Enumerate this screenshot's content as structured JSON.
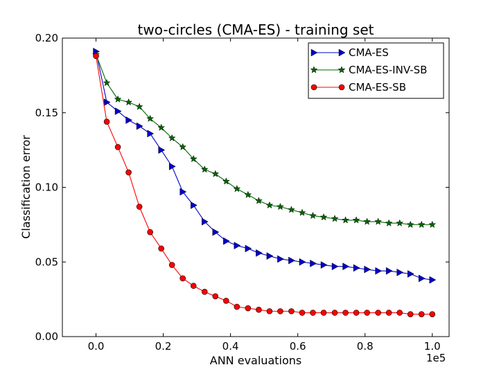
{
  "chart_data": {
    "type": "line",
    "title": "two-circles (CMA-ES) - training set",
    "xlabel": "ANN evaluations",
    "ylabel": "Classification error",
    "x_offset_label": "1e5",
    "xlim": [
      -0.1,
      1.05
    ],
    "ylim": [
      0.0,
      0.2
    ],
    "xticks": [
      0.0,
      0.2,
      0.4,
      0.6,
      0.8,
      1.0
    ],
    "xtick_labels": [
      "0.0",
      "0.2",
      "0.4",
      "0.6",
      "0.8",
      "1.0"
    ],
    "yticks": [
      0.0,
      0.05,
      0.1,
      0.15,
      0.2
    ],
    "ytick_labels": [
      "0.00",
      "0.05",
      "0.10",
      "0.15",
      "0.20"
    ],
    "legend_position": "top-right",
    "grid": false,
    "x": [
      0.0,
      0.032,
      0.065,
      0.097,
      0.129,
      0.161,
      0.194,
      0.226,
      0.258,
      0.29,
      0.323,
      0.355,
      0.387,
      0.419,
      0.452,
      0.484,
      0.516,
      0.548,
      0.581,
      0.613,
      0.645,
      0.677,
      0.71,
      0.742,
      0.774,
      0.806,
      0.839,
      0.871,
      0.903,
      0.935,
      0.968,
      1.0
    ],
    "series": [
      {
        "name": "CMA-ES",
        "color": "#0000cc",
        "marker": "triangle-right",
        "values": [
          0.191,
          0.157,
          0.151,
          0.145,
          0.141,
          0.136,
          0.125,
          0.114,
          0.097,
          0.088,
          0.077,
          0.07,
          0.064,
          0.061,
          0.059,
          0.056,
          0.054,
          0.052,
          0.051,
          0.05,
          0.049,
          0.048,
          0.047,
          0.047,
          0.046,
          0.045,
          0.044,
          0.044,
          0.043,
          0.042,
          0.039,
          0.038
        ]
      },
      {
        "name": "CMA-ES-INV-SB",
        "color": "#006600",
        "marker": "star",
        "values": [
          0.189,
          0.17,
          0.159,
          0.157,
          0.154,
          0.146,
          0.14,
          0.133,
          0.127,
          0.119,
          0.112,
          0.109,
          0.104,
          0.099,
          0.095,
          0.091,
          0.088,
          0.087,
          0.085,
          0.083,
          0.081,
          0.08,
          0.079,
          0.078,
          0.078,
          0.077,
          0.077,
          0.076,
          0.076,
          0.075,
          0.075,
          0.075
        ]
      },
      {
        "name": "CMA-ES-SB",
        "color": "#ff0000",
        "marker": "circle",
        "values": [
          0.188,
          0.144,
          0.127,
          0.11,
          0.087,
          0.07,
          0.059,
          0.048,
          0.039,
          0.034,
          0.03,
          0.027,
          0.024,
          0.02,
          0.019,
          0.018,
          0.017,
          0.017,
          0.017,
          0.016,
          0.016,
          0.016,
          0.016,
          0.016,
          0.016,
          0.016,
          0.016,
          0.016,
          0.016,
          0.015,
          0.015,
          0.015
        ]
      }
    ]
  }
}
